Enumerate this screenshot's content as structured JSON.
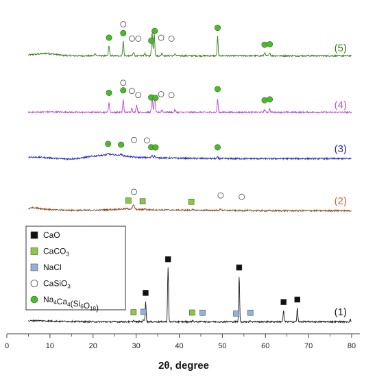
{
  "chart_data": {
    "type": "line",
    "xlabel": "2θ, degree",
    "ylabel": "",
    "xlim": [
      0,
      80
    ],
    "x_ticks": [
      0,
      10,
      20,
      30,
      40,
      50,
      60,
      70,
      80
    ],
    "grid": false,
    "legend_position": "left",
    "legend": [
      {
        "name": "CaO",
        "marker": "filled-square",
        "color": "#111111"
      },
      {
        "name": "CaCO3",
        "marker": "filled-square",
        "color": "#8dc63f"
      },
      {
        "name": "NaCl",
        "marker": "filled-square",
        "color": "#8fb4dc"
      },
      {
        "name": "CaSiO3",
        "marker": "open-circle",
        "color": "#ffffff"
      },
      {
        "name": "Na4Ca4(Si6O18)",
        "marker": "filled-circle",
        "color": "#4cb830"
      }
    ],
    "series": [
      {
        "label": "(5)",
        "color": "#3a7d1e",
        "label_color": "#3a7d1e",
        "background": [
          [
            5,
            3
          ],
          [
            7,
            5
          ],
          [
            9,
            7
          ],
          [
            11,
            5
          ],
          [
            13,
            2
          ],
          [
            16,
            1
          ],
          [
            20,
            1
          ],
          [
            30,
            1
          ],
          [
            40,
            1
          ],
          [
            50,
            1
          ],
          [
            60,
            1
          ],
          [
            70,
            1
          ],
          [
            80,
            1
          ]
        ],
        "peaks": [
          [
            20.5,
            6,
            0.2
          ],
          [
            23.7,
            24,
            0.18
          ],
          [
            27.0,
            35,
            0.18
          ],
          [
            29.4,
            8,
            0.2
          ],
          [
            32.0,
            6,
            0.2
          ],
          [
            33.7,
            58,
            0.18
          ],
          [
            34.2,
            55,
            0.18
          ],
          [
            36.0,
            6,
            0.2
          ],
          [
            39.0,
            5,
            0.2
          ],
          [
            48.9,
            48,
            0.15
          ],
          [
            59.8,
            7,
            0.2
          ],
          [
            61.0,
            8,
            0.2
          ]
        ],
        "markers": [
          {
            "phase": "Na4Ca4(Si6O18)",
            "x": [
              23.7,
              27.0,
              33.5,
              34.3,
              48.9,
              59.8,
              61.0
            ]
          },
          {
            "phase": "CaSiO3",
            "x": [
              27.0,
              29.0,
              30.5,
              35.8,
              38.2
            ]
          }
        ]
      },
      {
        "label": "(4)",
        "color": "#b443d8",
        "label_color": "#c05adc",
        "background": [
          [
            5,
            2
          ],
          [
            10,
            3
          ],
          [
            15,
            2
          ],
          [
            20,
            2
          ],
          [
            30,
            2
          ],
          [
            40,
            2
          ],
          [
            50,
            2
          ],
          [
            60,
            2
          ],
          [
            70,
            2
          ],
          [
            80,
            2
          ]
        ],
        "peaks": [
          [
            23.7,
            24,
            0.18
          ],
          [
            27.0,
            30,
            0.18
          ],
          [
            29.0,
            10,
            0.2
          ],
          [
            30.1,
            18,
            0.2
          ],
          [
            33.7,
            44,
            0.18
          ],
          [
            34.3,
            40,
            0.18
          ],
          [
            36.0,
            6,
            0.2
          ],
          [
            39.0,
            5,
            0.2
          ],
          [
            48.9,
            33,
            0.15
          ],
          [
            59.8,
            6,
            0.2
          ],
          [
            61.0,
            8,
            0.2
          ]
        ],
        "markers": [
          {
            "phase": "Na4Ca4(Si6O18)",
            "x": [
              23.7,
              27.0,
              33.5,
              34.5,
              48.9,
              59.8,
              61.0
            ]
          },
          {
            "phase": "CaSiO3",
            "x": [
              27.0,
              29.0,
              30.5,
              35.8,
              38.2
            ]
          }
        ]
      },
      {
        "label": "(3)",
        "color": "#2525c8",
        "label_color": "#2525c8",
        "background": [
          [
            5,
            5
          ],
          [
            8,
            4
          ],
          [
            11,
            2
          ],
          [
            14,
            0
          ],
          [
            17,
            2
          ],
          [
            20,
            7
          ],
          [
            24,
            11
          ],
          [
            27,
            8
          ],
          [
            30,
            4
          ],
          [
            35,
            3
          ],
          [
            40,
            2
          ],
          [
            50,
            1
          ],
          [
            60,
            1
          ],
          [
            70,
            1
          ],
          [
            80,
            1
          ]
        ],
        "peaks": [
          [
            23.5,
            3,
            0.3
          ],
          [
            26.5,
            3,
            0.3
          ],
          [
            33.7,
            6,
            0.2
          ],
          [
            34.3,
            5,
            0.2
          ],
          [
            48.9,
            4,
            0.15
          ]
        ],
        "markers": [
          {
            "phase": "Na4Ca4(Si6O18)",
            "x": [
              23.5,
              26.5,
              33.5,
              34.5,
              48.9
            ]
          },
          {
            "phase": "CaSiO3",
            "x": [
              29.5,
              32.5
            ]
          }
        ]
      },
      {
        "label": "(2)",
        "color": "#8a4a1c",
        "label_color": "#c07040",
        "background": [
          [
            5,
            6
          ],
          [
            6,
            9
          ],
          [
            8,
            6
          ],
          [
            11,
            3
          ],
          [
            15,
            2
          ],
          [
            20,
            2
          ],
          [
            25,
            4
          ],
          [
            28,
            6
          ],
          [
            30,
            4
          ],
          [
            35,
            3
          ],
          [
            45,
            2
          ],
          [
            60,
            1
          ],
          [
            70,
            1
          ],
          [
            80,
            1
          ]
        ],
        "peaks": [
          [
            29.4,
            10,
            0.3
          ],
          [
            32.0,
            3,
            0.2
          ],
          [
            43.0,
            2,
            0.2
          ],
          [
            49.6,
            3,
            0.25
          ]
        ],
        "markers": [
          {
            "phase": "CaCO3",
            "x": [
              28.2,
              31.5,
              42.8
            ]
          },
          {
            "phase": "CaSiO3",
            "x": [
              29.5,
              49.6,
              54.5
            ]
          }
        ]
      },
      {
        "label": "(1)",
        "color": "#1a1a1a",
        "label_color": "#1a1a1a",
        "background": [
          [
            5,
            3
          ],
          [
            7,
            4
          ],
          [
            9,
            3
          ],
          [
            12,
            2
          ],
          [
            20,
            1
          ],
          [
            30,
            1
          ],
          [
            40,
            1
          ],
          [
            50,
            1
          ],
          [
            60,
            1
          ],
          [
            70,
            1
          ],
          [
            80,
            1
          ]
        ],
        "peaks": [
          [
            29.4,
            3,
            0.2
          ],
          [
            31.7,
            4,
            0.2
          ],
          [
            32.2,
            50,
            0.15
          ],
          [
            37.4,
            132,
            0.15
          ],
          [
            43.1,
            3,
            0.2
          ],
          [
            45.4,
            2,
            0.2
          ],
          [
            53.9,
            112,
            0.15
          ],
          [
            56.5,
            2,
            0.2
          ],
          [
            64.2,
            28,
            0.15
          ],
          [
            67.4,
            34,
            0.15
          ],
          [
            79.7,
            5,
            0.15
          ]
        ],
        "markers": [
          {
            "phase": "CaO",
            "x": [
              32.2,
              37.4,
              53.9,
              64.2,
              67.4
            ]
          },
          {
            "phase": "CaCO3",
            "x": [
              29.4,
              43.0
            ]
          },
          {
            "phase": "NaCl",
            "x": [
              31.7,
              45.4,
              53.2,
              56.5
            ]
          }
        ]
      }
    ]
  }
}
